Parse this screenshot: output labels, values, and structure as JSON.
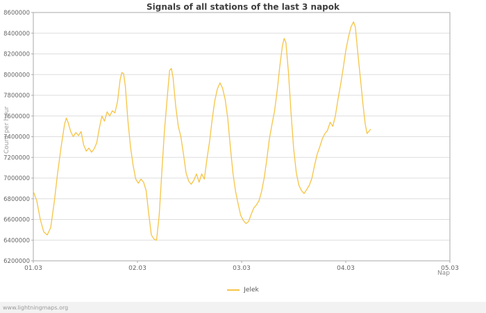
{
  "page": {
    "watermark": "www.lightningmaps.org"
  },
  "chart_data": {
    "type": "line",
    "title": "Signals of all stations of the last 3 napok",
    "xlabel": "Nap",
    "ylabel": "Count per hour",
    "legend_position": "bottom-center",
    "grid": "horizontal",
    "x_tick_labels": [
      "01.03",
      "02.03",
      "03.03",
      "04.03",
      "05.03"
    ],
    "x_tick_hours": [
      0,
      24,
      48,
      72,
      96
    ],
    "xlim_hours": [
      0,
      96
    ],
    "ylim": [
      6200000,
      8600000
    ],
    "y_tick_step": 200000,
    "colors": {
      "line": "#f6c445",
      "grid": "#dddddd",
      "frame": "#aaaaaa",
      "tick": "#666666",
      "title": "#3f3f3f",
      "axis_label": "#888888",
      "watermark": "#9a9a9a"
    },
    "series": [
      {
        "name": "Jelek",
        "color": "#f6c445",
        "points": [
          [
            0,
            6870000
          ],
          [
            0.8,
            6780000
          ],
          [
            1.6,
            6600000
          ],
          [
            2.4,
            6480000
          ],
          [
            3.2,
            6450000
          ],
          [
            4,
            6520000
          ],
          [
            4.8,
            6760000
          ],
          [
            5.6,
            7050000
          ],
          [
            6.4,
            7300000
          ],
          [
            7.2,
            7520000
          ],
          [
            7.6,
            7580000
          ],
          [
            8,
            7540000
          ],
          [
            8.6,
            7450000
          ],
          [
            9.2,
            7400000
          ],
          [
            9.8,
            7440000
          ],
          [
            10.4,
            7410000
          ],
          [
            11,
            7450000
          ],
          [
            11.6,
            7320000
          ],
          [
            12.2,
            7260000
          ],
          [
            12.8,
            7290000
          ],
          [
            13.4,
            7250000
          ],
          [
            14,
            7280000
          ],
          [
            14.6,
            7340000
          ],
          [
            15.2,
            7480000
          ],
          [
            15.8,
            7600000
          ],
          [
            16.4,
            7550000
          ],
          [
            17,
            7640000
          ],
          [
            17.6,
            7600000
          ],
          [
            18.2,
            7650000
          ],
          [
            18.8,
            7630000
          ],
          [
            19.4,
            7740000
          ],
          [
            20,
            7950000
          ],
          [
            20.4,
            8020000
          ],
          [
            20.8,
            8010000
          ],
          [
            21.2,
            7890000
          ],
          [
            21.8,
            7550000
          ],
          [
            22.4,
            7300000
          ],
          [
            23,
            7120000
          ],
          [
            23.6,
            6990000
          ],
          [
            24.2,
            6950000
          ],
          [
            24.8,
            6990000
          ],
          [
            25.4,
            6960000
          ],
          [
            26,
            6880000
          ],
          [
            26.6,
            6650000
          ],
          [
            27.2,
            6450000
          ],
          [
            27.8,
            6410000
          ],
          [
            28.4,
            6400000
          ],
          [
            29,
            6640000
          ],
          [
            29.6,
            7050000
          ],
          [
            30.2,
            7450000
          ],
          [
            30.8,
            7750000
          ],
          [
            31.4,
            8040000
          ],
          [
            31.8,
            8060000
          ],
          [
            32.2,
            7970000
          ],
          [
            32.8,
            7700000
          ],
          [
            33.4,
            7500000
          ],
          [
            34,
            7400000
          ],
          [
            34.6,
            7230000
          ],
          [
            35.2,
            7050000
          ],
          [
            35.8,
            6970000
          ],
          [
            36.4,
            6940000
          ],
          [
            37,
            6980000
          ],
          [
            37.6,
            7040000
          ],
          [
            38.2,
            6960000
          ],
          [
            38.8,
            7040000
          ],
          [
            39.4,
            6990000
          ],
          [
            40,
            7180000
          ],
          [
            40.6,
            7350000
          ],
          [
            41.2,
            7560000
          ],
          [
            41.8,
            7740000
          ],
          [
            42.4,
            7860000
          ],
          [
            43,
            7920000
          ],
          [
            43.6,
            7870000
          ],
          [
            44.2,
            7760000
          ],
          [
            44.8,
            7580000
          ],
          [
            45.4,
            7300000
          ],
          [
            46,
            7050000
          ],
          [
            46.6,
            6870000
          ],
          [
            47.2,
            6750000
          ],
          [
            47.8,
            6640000
          ],
          [
            48.4,
            6590000
          ],
          [
            49,
            6560000
          ],
          [
            49.6,
            6580000
          ],
          [
            50.2,
            6650000
          ],
          [
            50.8,
            6710000
          ],
          [
            51.4,
            6740000
          ],
          [
            52,
            6780000
          ],
          [
            52.6,
            6870000
          ],
          [
            53.2,
            7000000
          ],
          [
            53.8,
            7180000
          ],
          [
            54.4,
            7380000
          ],
          [
            55,
            7520000
          ],
          [
            55.6,
            7650000
          ],
          [
            56.2,
            7850000
          ],
          [
            56.8,
            8080000
          ],
          [
            57.4,
            8280000
          ],
          [
            57.8,
            8350000
          ],
          [
            58.2,
            8310000
          ],
          [
            58.8,
            8020000
          ],
          [
            59.4,
            7620000
          ],
          [
            60,
            7280000
          ],
          [
            60.6,
            7050000
          ],
          [
            61.2,
            6930000
          ],
          [
            61.8,
            6880000
          ],
          [
            62.4,
            6850000
          ],
          [
            63,
            6890000
          ],
          [
            63.6,
            6930000
          ],
          [
            64.2,
            7000000
          ],
          [
            64.8,
            7120000
          ],
          [
            65.4,
            7230000
          ],
          [
            66,
            7300000
          ],
          [
            66.6,
            7380000
          ],
          [
            67.2,
            7430000
          ],
          [
            67.8,
            7460000
          ],
          [
            68.4,
            7540000
          ],
          [
            69,
            7500000
          ],
          [
            69.6,
            7600000
          ],
          [
            70.2,
            7760000
          ],
          [
            70.8,
            7900000
          ],
          [
            71.4,
            8060000
          ],
          [
            72,
            8230000
          ],
          [
            72.6,
            8360000
          ],
          [
            73.2,
            8460000
          ],
          [
            73.8,
            8510000
          ],
          [
            74.2,
            8460000
          ],
          [
            74.8,
            8200000
          ],
          [
            75.4,
            7950000
          ],
          [
            76,
            7700000
          ],
          [
            76.5,
            7520000
          ],
          [
            76.9,
            7430000
          ],
          [
            77.3,
            7450000
          ],
          [
            77.7,
            7470000
          ]
        ]
      }
    ]
  }
}
